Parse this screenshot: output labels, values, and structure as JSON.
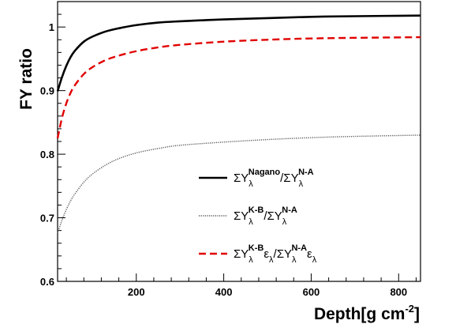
{
  "chart_data": {
    "type": "line",
    "xlabel": "Depth[g cm",
    "xlabel_sup": "-2",
    "xlabel_close": "]",
    "ylabel": "FY ratio",
    "xlim": [
      20,
      850
    ],
    "ylim": [
      0.6,
      1.04
    ],
    "x_ticks": [
      200,
      400,
      600,
      800
    ],
    "x_tick_labels": [
      "200",
      "400",
      "600",
      "800"
    ],
    "y_ticks": [
      0.6,
      0.7,
      0.8,
      0.9,
      1.0
    ],
    "y_tick_labels": [
      "0.6",
      "0.7",
      "0.8",
      "0.9",
      "1"
    ],
    "legend_position": "center-right",
    "series": [
      {
        "name": "ΣY_λ^Nagano/ΣY_λ^N-A",
        "style": "solid",
        "color": "#000000",
        "x": [
          20,
          30,
          40,
          50,
          60,
          80,
          100,
          130,
          160,
          200,
          250,
          300,
          400,
          500,
          600,
          700,
          850
        ],
        "y": [
          0.899,
          0.921,
          0.939,
          0.953,
          0.963,
          0.977,
          0.985,
          0.993,
          0.998,
          1.003,
          1.007,
          1.009,
          1.012,
          1.014,
          1.016,
          1.017,
          1.018
        ]
      },
      {
        "name": "ΣY_λ^K-B/ΣY_λ^N-A",
        "style": "dotted",
        "color": "#555555",
        "x": [
          20,
          30,
          40,
          50,
          60,
          80,
          100,
          130,
          160,
          200,
          250,
          300,
          400,
          500,
          600,
          700,
          850
        ],
        "y": [
          0.676,
          0.696,
          0.713,
          0.727,
          0.738,
          0.756,
          0.769,
          0.783,
          0.793,
          0.802,
          0.809,
          0.814,
          0.819,
          0.823,
          0.826,
          0.828,
          0.83
        ]
      },
      {
        "name": "ΣY_λ^K-Bε_λ/ΣY_λ^N-Aε_λ",
        "style": "dashed",
        "color": "#e00000",
        "x": [
          20,
          30,
          40,
          50,
          60,
          80,
          100,
          130,
          160,
          200,
          250,
          300,
          400,
          500,
          600,
          700,
          850
        ],
        "y": [
          0.825,
          0.857,
          0.88,
          0.897,
          0.909,
          0.926,
          0.937,
          0.948,
          0.955,
          0.962,
          0.968,
          0.972,
          0.977,
          0.98,
          0.982,
          0.983,
          0.984
        ]
      }
    ],
    "legend": [
      {
        "sigma": "ΣY",
        "sub1": "λ",
        "sup1": "Nagano",
        "mid": "/ΣY",
        "sub2": "λ",
        "sup2": "N-A",
        "eps1": "",
        "eps2": ""
      },
      {
        "sigma": "ΣY",
        "sub1": "λ",
        "sup1": "K-B",
        "mid": "/ΣY",
        "sub2": "λ",
        "sup2": "N-A",
        "eps1": "",
        "eps2": ""
      },
      {
        "sigma": "ΣY",
        "sub1": "λ",
        "sup1": "K-B",
        "mid": "/ΣY",
        "sub2": "λ",
        "sup2": "N-A",
        "eps1": "ε",
        "eps2": "ε"
      }
    ]
  }
}
